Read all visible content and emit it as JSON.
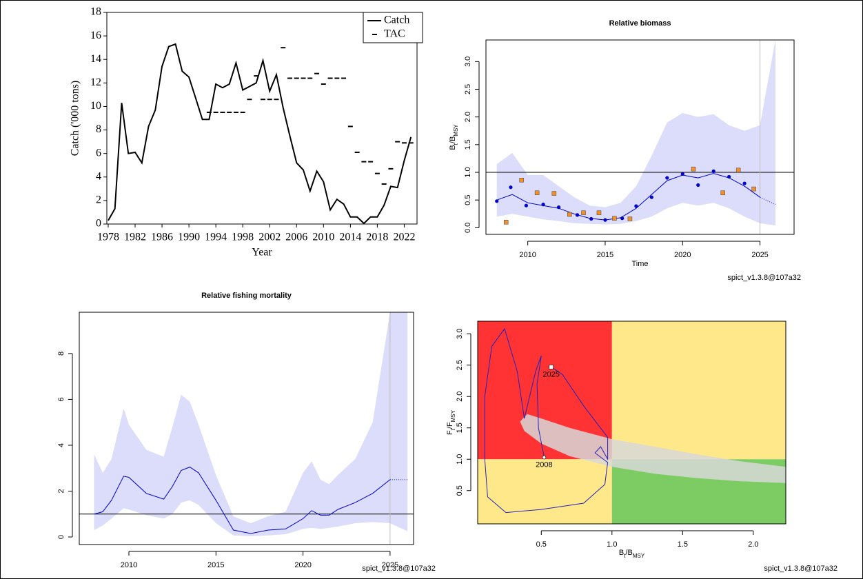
{
  "chart_data": [
    {
      "type": "line",
      "xlabel": "Year",
      "ylabel": "Catch ('000 tons)",
      "xlim": [
        1977.8,
        2023.9
      ],
      "ylim": [
        0,
        18
      ],
      "xticks": [
        1978,
        1982,
        1986,
        1990,
        1994,
        1998,
        2002,
        2006,
        2010,
        2014,
        2018,
        2022
      ],
      "yticks": [
        0,
        2,
        4,
        6,
        8,
        10,
        12,
        14,
        16,
        18
      ],
      "legend": "top-right",
      "series": [
        {
          "name": "Catch",
          "color": "#000000",
          "style": "solid",
          "x": [
            1978,
            1979,
            1980,
            1981,
            1982,
            1983,
            1984,
            1985,
            1986,
            1987,
            1988,
            1989,
            1990,
            1991,
            1992,
            1993,
            1994,
            1995,
            1996,
            1997,
            1998,
            1999,
            2000,
            2001,
            2002,
            2003,
            2004,
            2005,
            2006,
            2007,
            2008,
            2009,
            2010,
            2011,
            2012,
            2013,
            2014,
            2015,
            2016,
            2017,
            2018,
            2019,
            2020,
            2021,
            2022,
            2023
          ],
          "values": [
            0.3,
            1.3,
            10.3,
            6.0,
            6.1,
            5.2,
            8.3,
            9.7,
            13.4,
            15.1,
            15.3,
            13.0,
            12.5,
            10.7,
            8.9,
            8.9,
            11.9,
            11.6,
            11.9,
            13.7,
            11.4,
            11.7,
            12.0,
            13.9,
            11.3,
            12.7,
            9.9,
            7.5,
            5.2,
            4.6,
            2.8,
            4.5,
            3.6,
            1.2,
            2.1,
            1.7,
            0.6,
            0.6,
            0.05,
            0.6,
            0.6,
            1.6,
            3.2,
            3.1,
            5.4,
            7.4
          ]
        },
        {
          "name": "TAC",
          "color": "#000000",
          "style": "dash",
          "x": [
            1993,
            1994,
            1995,
            1996,
            1997,
            1998,
            1999,
            2000,
            2001,
            2002,
            2003,
            2004,
            2005,
            2006,
            2007,
            2008,
            2009,
            2010,
            2011,
            2012,
            2013,
            2014,
            2015,
            2016,
            2017,
            2018,
            2019,
            2020,
            2021,
            2022,
            2023
          ],
          "values": [
            9.5,
            9.5,
            9.5,
            9.5,
            9.5,
            9.5,
            10.6,
            12.6,
            10.6,
            10.6,
            10.6,
            15.0,
            12.4,
            12.4,
            12.4,
            12.4,
            12.8,
            11.9,
            12.4,
            12.4,
            12.4,
            8.3,
            6.1,
            5.3,
            5.3,
            4.3,
            3.4,
            4.7,
            7.0,
            6.9,
            6.9
          ]
        }
      ]
    },
    {
      "type": "area",
      "title": "Relative biomass",
      "xlabel": "Time",
      "ylabel_parts": [
        "B",
        "t",
        "/B",
        "MSY"
      ],
      "note": "spict_v1.3.8@107a32",
      "xlim": [
        2007.3,
        2027.2
      ],
      "ylim": [
        -0.12,
        3.39
      ],
      "xticks": [
        2010,
        2015,
        2020,
        2025
      ],
      "yticks": [
        {
          "value": 0,
          "label": "0.0"
        },
        0.5,
        {
          "value": 1,
          "label": "1.0"
        },
        1.5,
        {
          "value": 2,
          "label": "2.0"
        },
        2.5,
        {
          "value": 3,
          "label": "3.0"
        }
      ],
      "hline": 1,
      "vline": 2025,
      "band_color": "#dcdcfb",
      "line_color": "#0000cc",
      "x": [
        2008,
        2009,
        2010,
        2011,
        2012,
        2013,
        2014,
        2015,
        2016,
        2017,
        2018,
        2019,
        2020,
        2021,
        2022,
        2023,
        2024,
        2025,
        2026
      ],
      "median": [
        0.5,
        0.6,
        0.45,
        0.4,
        0.35,
        0.25,
        0.17,
        0.14,
        0.18,
        0.35,
        0.6,
        0.85,
        0.95,
        0.9,
        0.98,
        0.9,
        0.75,
        0.55,
        0.42
      ],
      "upper": [
        1.15,
        1.35,
        0.95,
        0.95,
        0.75,
        0.55,
        0.4,
        0.37,
        0.45,
        0.75,
        1.3,
        1.9,
        2.07,
        2.0,
        2.05,
        1.85,
        1.75,
        1.85,
        3.4
      ],
      "lower": [
        0.2,
        0.25,
        0.2,
        0.15,
        0.12,
        0.08,
        0.07,
        0.06,
        0.07,
        0.12,
        0.2,
        0.35,
        0.45,
        0.4,
        0.45,
        0.35,
        0.2,
        0.08,
        0.04
      ],
      "points": [
        {
          "shape": "circle",
          "color": "#0000cc",
          "x": [
            2008,
            2008.9,
            2009.9,
            2011,
            2012,
            2013.2,
            2014.1,
            2015,
            2016.1,
            2017,
            2018,
            2019,
            2020,
            2021,
            2022,
            2023,
            2024
          ],
          "y": [
            0.48,
            0.73,
            0.4,
            0.42,
            0.37,
            0.23,
            0.16,
            0.14,
            0.17,
            0.39,
            0.55,
            0.9,
            0.97,
            0.77,
            1.02,
            0.92,
            0.8
          ]
        },
        {
          "shape": "square",
          "color": "#f0902a",
          "x": [
            2008.6,
            2009.6,
            2010.6,
            2011.7,
            2012.7,
            2013.6,
            2014.6,
            2015.6,
            2016.6,
            2020.7,
            2022.6,
            2023.6,
            2024.6
          ],
          "y": [
            0.1,
            0.86,
            0.63,
            0.62,
            0.24,
            0.27,
            0.27,
            0.17,
            0.16,
            1.06,
            0.63,
            1.04,
            0.7
          ]
        }
      ]
    },
    {
      "type": "area",
      "title": "Relative fishing mortality",
      "note": "spict_v1.3.8@107a32",
      "xlim": [
        2007.15,
        2026.35
      ],
      "ylim": [
        -0.33,
        9.8
      ],
      "xticks": [
        2010,
        2015,
        2020,
        2025
      ],
      "yticks": [
        0,
        2,
        4,
        6,
        8
      ],
      "hline": 1,
      "vline": 2025,
      "band_color": "#dcdcfb",
      "line_color": "#0000cc",
      "x": [
        2008,
        2008.5,
        2009,
        2009.7,
        2010,
        2011,
        2012,
        2012.5,
        2013,
        2013.5,
        2014,
        2015,
        2016,
        2017,
        2018,
        2019,
        2020,
        2020.5,
        2021,
        2021.5,
        2022,
        2023,
        2024,
        2025,
        2026
      ],
      "median": [
        1.0,
        1.1,
        1.6,
        2.65,
        2.6,
        1.9,
        1.65,
        2.2,
        2.9,
        3.05,
        2.8,
        1.6,
        0.3,
        0.15,
        0.3,
        0.35,
        0.8,
        1.15,
        0.95,
        0.95,
        1.2,
        1.5,
        1.9,
        2.5,
        2.5
      ],
      "upper": [
        3.6,
        2.8,
        3.4,
        5.6,
        4.9,
        3.8,
        3.5,
        4.8,
        6.2,
        5.9,
        4.9,
        2.7,
        0.9,
        0.6,
        0.9,
        1.1,
        2.8,
        3.3,
        2.5,
        2.3,
        2.7,
        3.4,
        5.0,
        9.8,
        9.8
      ],
      "lower": [
        0.3,
        0.5,
        0.8,
        1.25,
        1.2,
        0.95,
        0.8,
        1.0,
        1.5,
        1.6,
        1.4,
        0.6,
        0.07,
        0.03,
        0.07,
        0.12,
        0.35,
        0.4,
        0.35,
        0.4,
        0.45,
        0.6,
        0.65,
        0.6,
        0.25
      ]
    },
    {
      "type": "phase",
      "xlabel_parts": [
        "B",
        "t",
        "/B",
        "MSY"
      ],
      "ylabel_parts": [
        "F",
        "t",
        "/F",
        "MSY"
      ],
      "note": "spict_v1.3.8@107a32",
      "xlim": [
        0.05,
        2.23
      ],
      "ylim": [
        -0.03,
        3.2
      ],
      "xticks": [
        0.5,
        {
          "value": 1,
          "label": "1.0"
        },
        1.5,
        {
          "value": 2,
          "label": "2.0"
        }
      ],
      "yticks": [
        0.5,
        {
          "value": 1,
          "label": "1.0"
        },
        1.5,
        {
          "value": 2,
          "label": "2.0"
        },
        2.5,
        {
          "value": 3,
          "label": "3.0"
        }
      ],
      "hline": 1,
      "vline": 1,
      "zone_colors": {
        "top_left": "#ff3333",
        "top_right": "#ffe88a",
        "bottom_left": "#ffe88a",
        "bottom_right": "#7ccc63"
      },
      "ci_color": "#d8d8d8",
      "line_color": "#2222bb",
      "ci_region": {
        "x": [
          0.4,
          0.5,
          0.7,
          1.0,
          1.3,
          1.6,
          1.9,
          2.23,
          2.23,
          1.9,
          1.6,
          1.3,
          1.0,
          0.7,
          0.5,
          0.38,
          0.35
        ],
        "y": [
          1.72,
          1.65,
          1.5,
          1.32,
          1.2,
          1.08,
          0.97,
          0.88,
          0.62,
          0.65,
          0.7,
          0.77,
          0.88,
          1.05,
          1.25,
          1.45,
          1.6
        ]
      },
      "x": [
        0.52,
        0.48,
        0.47,
        0.5,
        0.46,
        0.38,
        0.33,
        0.24,
        0.15,
        0.1,
        0.1,
        0.12,
        0.25,
        0.5,
        0.8,
        0.95,
        0.97,
        0.88,
        0.92,
        0.97,
        0.97,
        0.8,
        0.65,
        0.57
      ],
      "y": [
        1.03,
        1.5,
        2.2,
        2.65,
        2.4,
        1.65,
        2.4,
        3.08,
        2.8,
        2.0,
        1.0,
        0.4,
        0.15,
        0.2,
        0.3,
        0.6,
        0.95,
        1.1,
        1.2,
        1.0,
        1.35,
        1.85,
        2.35,
        2.47
      ],
      "start_label": "2008",
      "end_label": "2025"
    }
  ]
}
